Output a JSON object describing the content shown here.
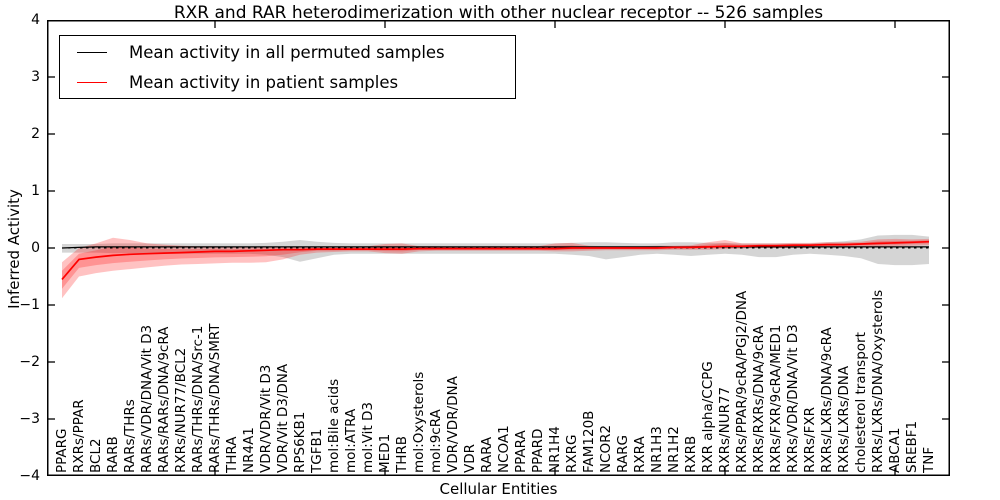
{
  "title": "RXR and RAR heterodimerization with other nuclear receptor -- 526 samples",
  "legend": {
    "items": [
      {
        "label": "Mean activity in all permuted samples",
        "color": "#000000"
      },
      {
        "label": "Mean activity in patient samples",
        "color": "#ff0000"
      }
    ]
  },
  "axes": {
    "ylabel": "Inferred Activity",
    "xlabel": "Cellular Entities",
    "yticks": [
      4,
      3,
      2,
      1,
      0,
      -1,
      -2,
      -3,
      -4
    ],
    "ylim": [
      -4,
      4
    ]
  },
  "colors": {
    "permuted_line": "#000000",
    "patient_line": "#ff0000",
    "permuted_band": "rgba(100,100,100,0.27)",
    "patient_band": "rgba(255,0,0,0.24)",
    "zero_line": "#000000"
  },
  "chart_data": {
    "type": "line",
    "title": "RXR and RAR heterodimerization with other nuclear receptor -- 526 samples",
    "xlabel": "Cellular Entities",
    "ylabel": "Inferred Activity",
    "ylim": [
      -4,
      4
    ],
    "grid": false,
    "legend_position": "upper left",
    "zero_reference_line": true,
    "categories": [
      "PPARG",
      "RXRs/PPAR",
      "BCL2",
      "RARB",
      "RARs/THRs",
      "RARs/VDR/DNA/Vit D3",
      "RARs/RARs/DNA/9cRA",
      "RXRs/NUR77/BCL2",
      "RARs/THRs/DNA/Src-1",
      "RARs/THRs/DNA/SMRT",
      "THRA",
      "NR4A1",
      "VDR/VDR/Vit D3",
      "VDR/Vit D3/DNA",
      "RPS6KB1",
      "TGFB1",
      "mol:Bile acids",
      "mol:ATRA",
      "mol:Vit D3",
      "MED1",
      "THRB",
      "mol:Oxysterols",
      "mol:9cRA",
      "VDR/VDR/DNA",
      "VDR",
      "RARA",
      "NCOA1",
      "PPARA",
      "PPARD",
      "NR1H4",
      "RXRG",
      "FAM120B",
      "NCOR2",
      "RARG",
      "RXRA",
      "NR1H3",
      "NR1H2",
      "RXRB",
      "RXR alpha/CCPG",
      "RXRs/NUR77",
      "RXRs/PPAR/9cRA/PGJ2/DNA",
      "RXRs/RXRs/DNA/9cRA",
      "RXRs/FXR/9cRA/MED1",
      "RXRs/VDR/DNA/Vit D3",
      "RXRs/FXR",
      "RXRs/LXRs/DNA/9cRA",
      "RXRs/LXRs/DNA",
      "cholesterol transport",
      "RXRs/LXRs/DNA/Oxysterols",
      "ABCA1",
      "SREBF1",
      "TNF"
    ],
    "series": [
      {
        "name": "Mean activity in all permuted samples",
        "color": "#000000",
        "values": [
          0.0,
          0.01,
          0.02,
          0.02,
          0.02,
          0.02,
          0.02,
          0.02,
          0.02,
          0.02,
          0.02,
          0.02,
          0.02,
          0.02,
          0.02,
          0.02,
          0.02,
          0.02,
          0.02,
          0.02,
          0.02,
          0.02,
          0.02,
          0.02,
          0.02,
          0.02,
          0.02,
          0.02,
          0.02,
          0.02,
          0.02,
          0.02,
          0.02,
          0.02,
          0.02,
          0.02,
          0.02,
          0.02,
          0.02,
          0.02,
          0.02,
          0.02,
          0.02,
          0.02,
          0.02,
          0.02,
          0.02,
          0.02,
          0.02,
          0.02,
          0.02,
          0.02
        ],
        "band_low": [
          -0.08,
          -0.08,
          -0.08,
          -0.09,
          -0.09,
          -0.1,
          -0.1,
          -0.1,
          -0.1,
          -0.1,
          -0.1,
          -0.1,
          -0.12,
          -0.16,
          -0.24,
          -0.18,
          -0.12,
          -0.1,
          -0.1,
          -0.1,
          -0.1,
          -0.1,
          -0.1,
          -0.1,
          -0.1,
          -0.1,
          -0.1,
          -0.1,
          -0.1,
          -0.1,
          -0.12,
          -0.14,
          -0.2,
          -0.16,
          -0.12,
          -0.1,
          -0.12,
          -0.14,
          -0.12,
          -0.1,
          -0.12,
          -0.16,
          -0.16,
          -0.12,
          -0.1,
          -0.12,
          -0.14,
          -0.18,
          -0.28,
          -0.3,
          -0.3,
          -0.28
        ],
        "band_high": [
          0.07,
          0.07,
          0.07,
          0.08,
          0.08,
          0.08,
          0.08,
          0.08,
          0.08,
          0.08,
          0.08,
          0.08,
          0.09,
          0.11,
          0.14,
          0.11,
          0.09,
          0.08,
          0.08,
          0.08,
          0.08,
          0.08,
          0.08,
          0.08,
          0.08,
          0.08,
          0.08,
          0.08,
          0.08,
          0.08,
          0.09,
          0.1,
          0.1,
          0.09,
          0.08,
          0.08,
          0.1,
          0.1,
          0.09,
          0.09,
          0.08,
          0.08,
          0.08,
          0.08,
          0.08,
          0.1,
          0.12,
          0.15,
          0.22,
          0.23,
          0.23,
          0.2
        ]
      },
      {
        "name": "Mean activity in patient samples",
        "color": "#ff0000",
        "values": [
          -0.55,
          -0.2,
          -0.16,
          -0.13,
          -0.11,
          -0.1,
          -0.09,
          -0.08,
          -0.07,
          -0.06,
          -0.06,
          -0.05,
          -0.04,
          -0.03,
          -0.03,
          -0.02,
          -0.02,
          -0.02,
          -0.02,
          -0.02,
          -0.02,
          -0.01,
          -0.01,
          -0.01,
          -0.01,
          -0.01,
          -0.01,
          -0.01,
          -0.01,
          -0.01,
          0.0,
          0.0,
          0.0,
          0.0,
          0.0,
          0.0,
          0.01,
          0.01,
          0.02,
          0.03,
          0.03,
          0.04,
          0.04,
          0.05,
          0.05,
          0.06,
          0.06,
          0.07,
          0.08,
          0.09,
          0.1,
          0.11
        ],
        "band_low": [
          -0.88,
          -0.5,
          -0.44,
          -0.4,
          -0.37,
          -0.34,
          -0.31,
          -0.29,
          -0.28,
          -0.27,
          -0.26,
          -0.26,
          -0.25,
          -0.2,
          -0.12,
          -0.08,
          -0.07,
          -0.06,
          -0.06,
          -0.09,
          -0.1,
          -0.06,
          -0.05,
          -0.05,
          -0.05,
          -0.05,
          -0.05,
          -0.05,
          -0.05,
          -0.06,
          -0.06,
          -0.05,
          -0.04,
          -0.04,
          -0.04,
          -0.04,
          -0.03,
          -0.03,
          -0.03,
          -0.02,
          -0.01,
          0.0,
          0.0,
          0.0,
          0.0,
          0.01,
          0.01,
          0.02,
          0.02,
          0.03,
          0.04,
          0.05
        ],
        "band_high": [
          -0.25,
          0.0,
          0.08,
          0.18,
          0.14,
          0.08,
          0.06,
          0.04,
          0.03,
          0.03,
          0.02,
          0.02,
          0.02,
          0.02,
          0.02,
          0.02,
          0.02,
          0.02,
          0.03,
          0.07,
          0.08,
          0.03,
          0.03,
          0.02,
          0.02,
          0.03,
          0.03,
          0.03,
          0.03,
          0.08,
          0.09,
          0.04,
          0.03,
          0.03,
          0.03,
          0.04,
          0.04,
          0.05,
          0.1,
          0.14,
          0.08,
          0.08,
          0.08,
          0.09,
          0.09,
          0.1,
          0.1,
          0.11,
          0.15,
          0.16,
          0.15,
          0.16
        ]
      }
    ]
  }
}
